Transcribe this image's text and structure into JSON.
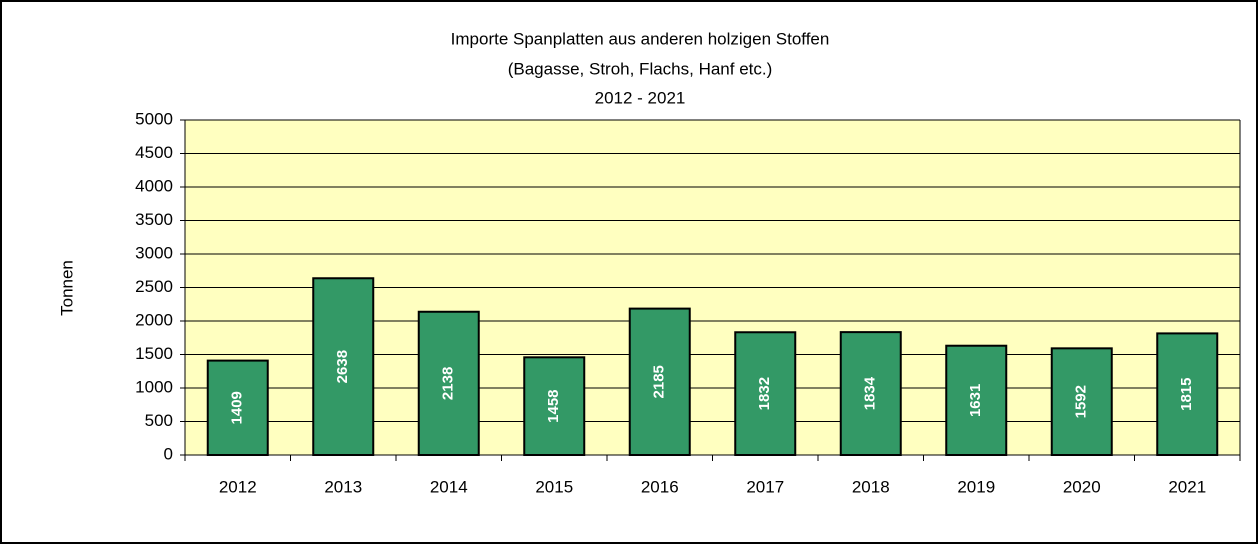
{
  "chart_data": {
    "type": "bar",
    "title": [
      "Importe Spanplatten aus anderen holzigen Stoffen",
      "(Bagasse, Stroh, Flachs, Hanf etc.)",
      "2012 - 2021"
    ],
    "ylabel": "Tonnen",
    "categories": [
      "2012",
      "2013",
      "2014",
      "2015",
      "2016",
      "2017",
      "2018",
      "2019",
      "2020",
      "2021"
    ],
    "values": [
      1409,
      2638,
      2138,
      1458,
      2185,
      1832,
      1834,
      1631,
      1592,
      1815
    ],
    "color": "#339966",
    "ylim": [
      0,
      5000
    ],
    "yticks": [
      0,
      500,
      1000,
      1500,
      2000,
      2500,
      3000,
      3500,
      4000,
      4500,
      5000
    ],
    "grid": true
  }
}
